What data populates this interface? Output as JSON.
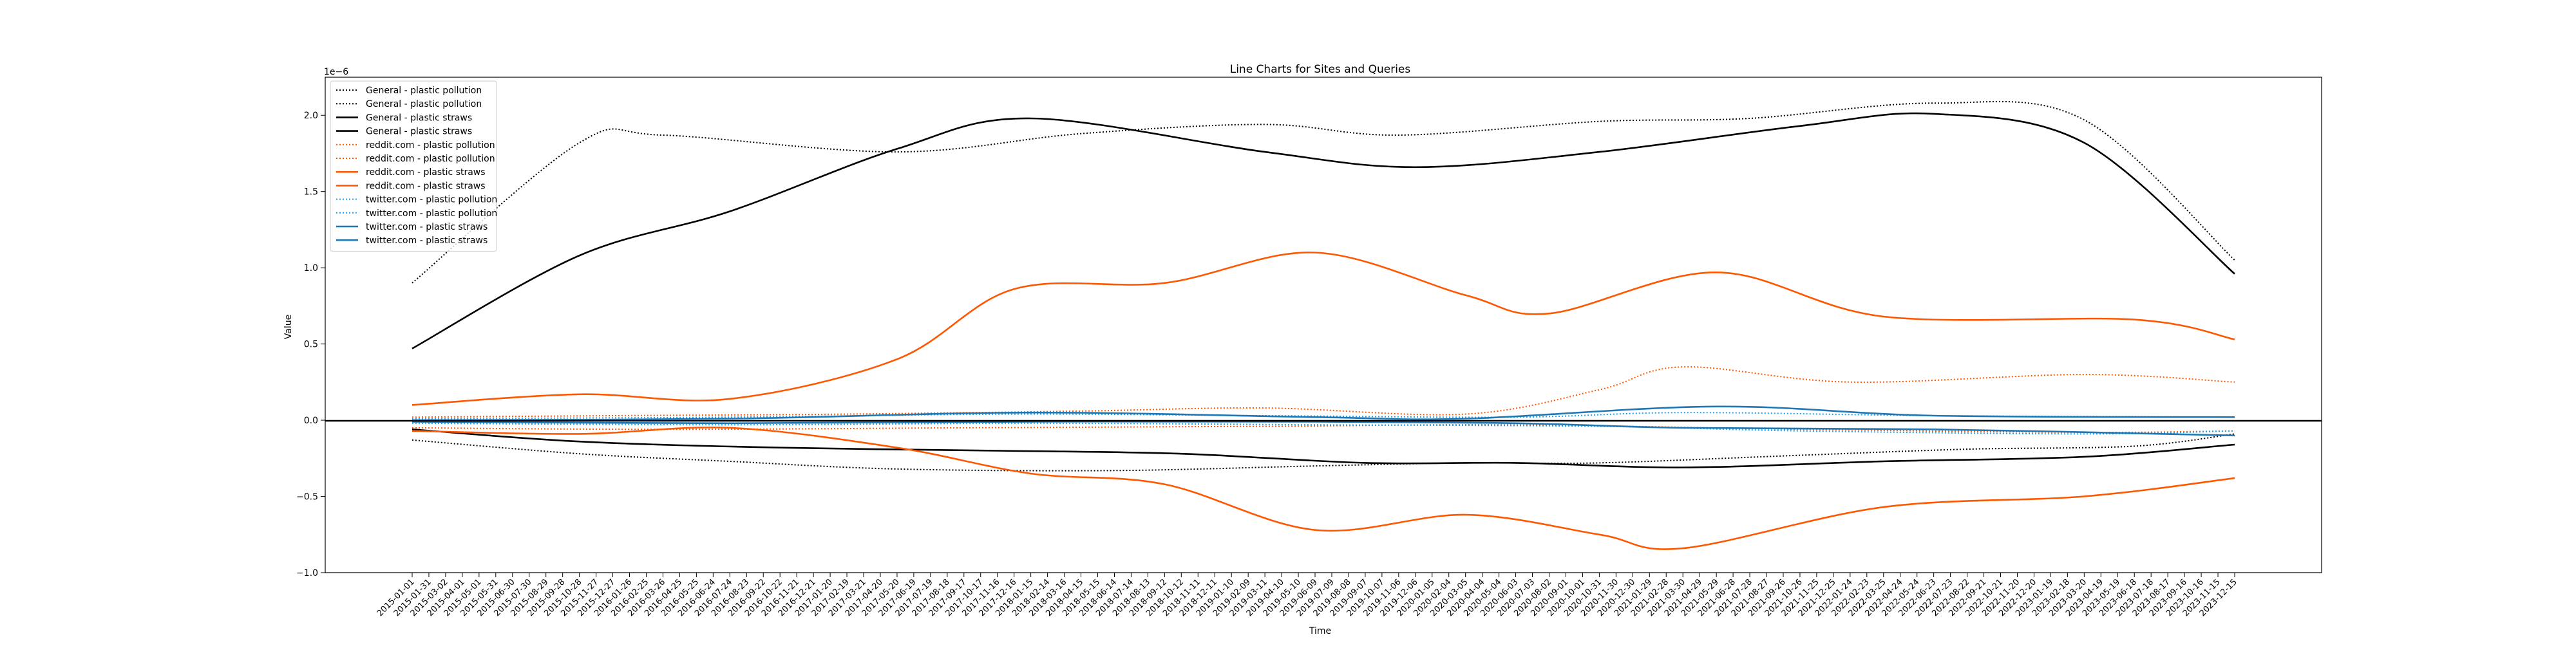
{
  "chart_data": {
    "type": "line",
    "title": "Line Charts for Sites and Queries",
    "xlabel": "Time",
    "ylabel": "Value",
    "y_offset_label": "1e−6",
    "ylim": [
      -1.0,
      2.25
    ],
    "yticks": [
      "−1.0",
      "−0.5",
      "0.0",
      "0.5",
      "1.0",
      "1.5",
      "2.0"
    ],
    "ytick_values": [
      -1.0,
      -0.5,
      0.0,
      0.5,
      1.0,
      1.5,
      2.0
    ],
    "grid": false,
    "legend_position": "top-left",
    "x_dates": [
      "2015-01-01",
      "2015-01-31",
      "2015-03-02",
      "2015-04-01",
      "2015-05-01",
      "2015-05-31",
      "2015-06-30",
      "2015-07-30",
      "2015-08-29",
      "2015-09-28",
      "2015-10-28",
      "2015-11-27",
      "2015-12-27",
      "2016-01-26",
      "2016-02-25",
      "2016-03-26",
      "2016-04-25",
      "2016-05-25",
      "2016-06-24",
      "2016-07-24",
      "2016-08-23",
      "2016-09-22",
      "2016-10-22",
      "2016-11-21",
      "2016-12-21",
      "2017-01-20",
      "2017-02-19",
      "2017-03-21",
      "2017-04-20",
      "2017-05-20",
      "2017-06-19",
      "2017-07-19",
      "2017-08-18",
      "2017-09-17",
      "2017-10-17",
      "2017-11-16",
      "2017-12-16",
      "2018-01-15",
      "2018-02-14",
      "2018-03-16",
      "2018-04-15",
      "2018-05-15",
      "2018-06-14",
      "2018-07-14",
      "2018-08-13",
      "2018-09-12",
      "2018-10-12",
      "2018-11-11",
      "2018-12-11",
      "2019-01-10",
      "2019-02-09",
      "2019-03-11",
      "2019-04-10",
      "2019-05-10",
      "2019-06-09",
      "2019-07-09",
      "2019-08-08",
      "2019-09-07",
      "2019-10-07",
      "2019-11-06",
      "2019-12-06",
      "2020-01-05",
      "2020-02-04",
      "2020-03-05",
      "2020-04-04",
      "2020-05-04",
      "2020-06-03",
      "2020-07-03",
      "2020-08-02",
      "2020-09-01",
      "2020-10-01",
      "2020-10-31",
      "2020-11-30",
      "2020-12-30",
      "2021-01-29",
      "2021-02-28",
      "2021-03-30",
      "2021-04-29",
      "2021-05-29",
      "2021-06-28",
      "2021-07-28",
      "2021-08-27",
      "2021-09-26",
      "2021-10-26",
      "2021-11-25",
      "2021-12-25",
      "2022-01-24",
      "2022-02-23",
      "2022-03-25",
      "2022-04-24",
      "2022-05-24",
      "2022-06-23",
      "2022-07-23",
      "2022-08-22",
      "2022-09-21",
      "2022-10-21",
      "2022-11-20",
      "2022-12-20",
      "2023-01-19",
      "2023-02-18",
      "2023-03-20",
      "2023-04-19",
      "2023-05-19",
      "2023-06-18",
      "2023-07-18",
      "2023-08-17",
      "2023-09-16",
      "2023-10-16",
      "2023-11-15",
      "2023-12-15"
    ],
    "series": [
      {
        "name": "General - plastic pollution",
        "color": "#000000",
        "dash": "dotted",
        "x": [
          "2015-01-01",
          "2015-10-28",
          "2016-03-26",
          "2017-05-20",
          "2018-04-15",
          "2019-03-11",
          "2019-11-06",
          "2020-10-31",
          "2021-07-28",
          "2022-06-23",
          "2023-03-20",
          "2023-12-15"
        ],
        "values": [
          0.9,
          1.82,
          1.87,
          1.76,
          1.88,
          1.94,
          1.87,
          1.96,
          1.98,
          2.08,
          1.97,
          1.05
        ]
      },
      {
        "name": "General - plastic pollution",
        "color": "#000000",
        "dash": "dotted",
        "x": [
          "2015-01-01",
          "2015-10-28",
          "2016-07-24",
          "2017-05-20",
          "2018-06-14",
          "2019-06-09",
          "2020-03-05",
          "2020-10-31",
          "2021-10-26",
          "2022-08-22",
          "2023-06-18",
          "2023-12-15"
        ],
        "values": [
          -0.13,
          -0.22,
          -0.27,
          -0.32,
          -0.33,
          -0.3,
          -0.28,
          -0.28,
          -0.23,
          -0.19,
          -0.17,
          -0.09
        ]
      },
      {
        "name": "General - plastic straws",
        "color": "#000000",
        "dash": "solid",
        "x": [
          "2015-01-01",
          "2015-10-28",
          "2016-07-24",
          "2017-05-20",
          "2018-01-15",
          "2019-03-11",
          "2019-12-06",
          "2020-10-31",
          "2021-10-26",
          "2022-06-23",
          "2023-03-20",
          "2023-12-15"
        ],
        "values": [
          0.47,
          1.08,
          1.37,
          1.78,
          1.98,
          1.76,
          1.66,
          1.76,
          1.93,
          2.01,
          1.82,
          0.96
        ]
      },
      {
        "name": "General - plastic straws",
        "color": "#000000",
        "dash": "solid",
        "x": [
          "2015-01-01",
          "2015-10-28",
          "2016-10-22",
          "2017-11-16",
          "2018-10-12",
          "2019-09-07",
          "2020-06-03",
          "2021-03-30",
          "2022-03-25",
          "2023-03-20",
          "2023-12-15"
        ],
        "values": [
          -0.06,
          -0.14,
          -0.18,
          -0.2,
          -0.22,
          -0.28,
          -0.28,
          -0.31,
          -0.27,
          -0.24,
          -0.16
        ]
      },
      {
        "name": "reddit.com - plastic pollution",
        "color": "#ff5700",
        "dash": "dotted",
        "x": [
          "2015-01-01",
          "2015-12-27",
          "2017-02-19",
          "2018-04-15",
          "2019-03-11",
          "2020-03-05",
          "2020-10-31",
          "2021-03-30",
          "2022-01-24",
          "2023-03-20",
          "2023-12-15"
        ],
        "values": [
          0.02,
          0.03,
          0.04,
          0.06,
          0.08,
          0.04,
          0.2,
          0.35,
          0.25,
          0.3,
          0.25
        ]
      },
      {
        "name": "reddit.com - plastic pollution",
        "color": "#ff5700",
        "dash": "dotted",
        "x": [
          "2015-01-01",
          "2016-03-26",
          "2017-09-17",
          "2019-03-11",
          "2020-06-03",
          "2021-10-26",
          "2023-03-20",
          "2023-12-15"
        ],
        "values": [
          -0.05,
          -0.06,
          -0.05,
          -0.04,
          -0.03,
          -0.06,
          -0.08,
          -0.07
        ]
      },
      {
        "name": "reddit.com - plastic straws",
        "color": "#ff5700",
        "dash": "solid",
        "x": [
          "2015-01-01",
          "2015-10-28",
          "2016-07-24",
          "2017-05-20",
          "2017-12-16",
          "2018-09-12",
          "2019-06-09",
          "2020-03-05",
          "2020-08-02",
          "2021-05-29",
          "2022-03-25",
          "2023-06-18",
          "2023-12-15"
        ],
        "values": [
          0.1,
          0.17,
          0.14,
          0.4,
          0.86,
          0.9,
          1.1,
          0.82,
          0.7,
          0.97,
          0.68,
          0.66,
          0.53
        ]
      },
      {
        "name": "reddit.com - plastic straws",
        "color": "#ff5700",
        "dash": "solid",
        "x": [
          "2015-01-01",
          "2015-10-28",
          "2016-07-24",
          "2017-05-20",
          "2018-01-15",
          "2018-09-12",
          "2019-06-09",
          "2020-03-05",
          "2020-10-31",
          "2021-03-30",
          "2022-03-25",
          "2023-03-20",
          "2023-12-15"
        ],
        "values": [
          -0.07,
          -0.09,
          -0.05,
          -0.18,
          -0.35,
          -0.42,
          -0.72,
          -0.62,
          -0.75,
          -0.84,
          -0.57,
          -0.5,
          -0.38
        ]
      },
      {
        "name": "twitter.com - plastic pollution",
        "color": "#1da1f2",
        "dash": "dotted",
        "x": [
          "2015-01-01",
          "2016-07-24",
          "2017-12-16",
          "2019-03-11",
          "2020-06-03",
          "2021-03-30",
          "2022-06-23",
          "2023-12-15"
        ],
        "values": [
          0.01,
          0.02,
          0.04,
          0.03,
          0.02,
          0.05,
          0.03,
          0.02
        ]
      },
      {
        "name": "twitter.com - plastic pollution",
        "color": "#1da1f2",
        "dash": "dotted",
        "x": [
          "2015-01-01",
          "2016-07-24",
          "2018-01-15",
          "2019-06-09",
          "2020-10-31",
          "2021-10-26",
          "2023-03-20",
          "2023-12-15"
        ],
        "values": [
          -0.02,
          -0.03,
          -0.02,
          -0.03,
          -0.04,
          -0.07,
          -0.09,
          -0.07
        ]
      },
      {
        "name": "twitter.com - plastic straws",
        "color": "#1f77b4",
        "dash": "solid",
        "x": [
          "2015-01-01",
          "2016-07-24",
          "2018-01-15",
          "2019-06-09",
          "2020-03-05",
          "2021-05-29",
          "2022-06-23",
          "2023-12-15"
        ],
        "values": [
          0.0,
          0.01,
          0.05,
          0.02,
          0.01,
          0.09,
          0.03,
          0.02
        ]
      },
      {
        "name": "twitter.com - plastic straws",
        "color": "#1f77b4",
        "dash": "solid",
        "x": [
          "2015-01-01",
          "2016-07-24",
          "2018-01-15",
          "2019-06-09",
          "2020-06-03",
          "2021-03-30",
          "2022-06-23",
          "2023-12-15"
        ],
        "values": [
          -0.01,
          -0.02,
          -0.01,
          -0.01,
          -0.02,
          -0.05,
          -0.06,
          -0.1
        ]
      }
    ]
  }
}
